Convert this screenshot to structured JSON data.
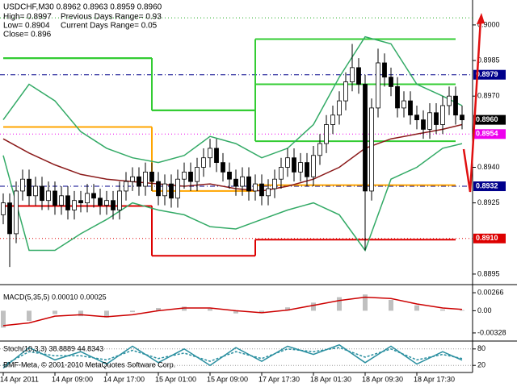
{
  "chart_data": [
    {
      "type": "candlestick",
      "title": "USDCHF,M30  0.8962 0.8963 0.8959 0.8960",
      "info": [
        "High= 0.8997",
        "Previous Days Range= 0.93",
        "Low= 0.8904",
        "Current Days Range= 0.05",
        "Close= 0.896"
      ],
      "footer": "BMF-Meta, © 2001-2010 MetaQuotes Software Corp.",
      "xlim": [
        -0.5,
        71.5
      ],
      "xticks": [
        {
          "value": 0,
          "label": "14 Apr 2011"
        },
        {
          "value": 8,
          "label": "14 Apr 09:00"
        },
        {
          "value": 16,
          "label": "14 Apr 17:00"
        },
        {
          "value": 24,
          "label": "15 Apr 01:00"
        },
        {
          "value": 32,
          "label": "15 Apr 09:00"
        },
        {
          "value": 40,
          "label": "17 Apr 17:30"
        },
        {
          "value": 48,
          "label": "18 Apr 01:30"
        },
        {
          "value": 56,
          "label": "18 Apr 09:30"
        },
        {
          "value": 64,
          "label": "18 Apr 17:30"
        }
      ],
      "ylim": [
        0.88909,
        0.90105
      ],
      "yticks": [
        {
          "value": 0.9,
          "label": "0.9000"
        },
        0.8985,
        {
          "value": 0.897,
          "label": "0.8970"
        },
        {
          "value": 0.894,
          "label": "0.8940"
        },
        0.8925,
        0.8895
      ],
      "up_color": "#ffffff",
      "down_color": "#000000",
      "open": [
        0.892,
        0.8925,
        0.8912,
        0.893,
        0.8935,
        0.8928,
        0.8932,
        0.8926,
        0.893,
        0.8924,
        0.8928,
        0.8922,
        0.8926,
        0.8925,
        0.8929,
        0.8927,
        0.8924,
        0.8926,
        0.8922,
        0.893,
        0.8934,
        0.8936,
        0.8932,
        0.8938,
        0.8934,
        0.8928,
        0.8933,
        0.8927,
        0.8935,
        0.8938,
        0.8934,
        0.894,
        0.8944,
        0.8948,
        0.8942,
        0.8938,
        0.8935,
        0.8932,
        0.8936,
        0.893,
        0.8933,
        0.8928,
        0.8931,
        0.8935,
        0.894,
        0.8944,
        0.8938,
        0.8942,
        0.8936,
        0.8945,
        0.895,
        0.8958,
        0.8962,
        0.8968,
        0.8976,
        0.8982,
        0.8975,
        0.893,
        0.8965,
        0.8984,
        0.8978,
        0.8974,
        0.8965,
        0.8968,
        0.8962,
        0.896,
        0.8956,
        0.8963,
        0.8958,
        0.8966,
        0.897,
        0.8962
      ],
      "high": [
        0.8929,
        0.8929,
        0.8934,
        0.8939,
        0.8939,
        0.8936,
        0.8936,
        0.8934,
        0.8934,
        0.8932,
        0.8932,
        0.893,
        0.893,
        0.8933,
        0.8933,
        0.8931,
        0.893,
        0.893,
        0.8934,
        0.8938,
        0.894,
        0.894,
        0.8942,
        0.8942,
        0.8938,
        0.8937,
        0.8937,
        0.8939,
        0.8942,
        0.8942,
        0.8944,
        0.8948,
        0.8952,
        0.8952,
        0.8946,
        0.8942,
        0.8939,
        0.894,
        0.894,
        0.8937,
        0.8937,
        0.8935,
        0.8939,
        0.8944,
        0.8948,
        0.8948,
        0.8946,
        0.8946,
        0.8949,
        0.8954,
        0.8962,
        0.8966,
        0.8972,
        0.898,
        0.8992,
        0.8986,
        0.8979,
        0.8969,
        0.899,
        0.8988,
        0.8982,
        0.8978,
        0.8972,
        0.8972,
        0.8966,
        0.8964,
        0.8967,
        0.8967,
        0.897,
        0.8974,
        0.8974,
        0.8966
      ],
      "low": [
        0.8916,
        0.8898,
        0.8908,
        0.8926,
        0.8924,
        0.8924,
        0.8922,
        0.8922,
        0.892,
        0.892,
        0.8918,
        0.8918,
        0.8921,
        0.8921,
        0.8923,
        0.892,
        0.892,
        0.8918,
        0.8918,
        0.8926,
        0.893,
        0.8928,
        0.8928,
        0.893,
        0.8924,
        0.8924,
        0.8923,
        0.8923,
        0.8931,
        0.893,
        0.893,
        0.8936,
        0.894,
        0.8938,
        0.8934,
        0.8931,
        0.8928,
        0.8928,
        0.8926,
        0.8926,
        0.8924,
        0.8924,
        0.8927,
        0.8931,
        0.8936,
        0.8934,
        0.8934,
        0.8932,
        0.8932,
        0.8941,
        0.8946,
        0.8954,
        0.8958,
        0.8964,
        0.8972,
        0.8971,
        0.8905,
        0.8926,
        0.8961,
        0.8974,
        0.897,
        0.8961,
        0.8961,
        0.8958,
        0.8956,
        0.8952,
        0.8952,
        0.8954,
        0.8954,
        0.8962,
        0.8958,
        0.8956
      ],
      "close": [
        0.8925,
        0.8912,
        0.893,
        0.8935,
        0.8928,
        0.8932,
        0.8926,
        0.893,
        0.8924,
        0.8928,
        0.8922,
        0.8926,
        0.8925,
        0.8929,
        0.8927,
        0.8924,
        0.8926,
        0.8922,
        0.893,
        0.8934,
        0.8936,
        0.8932,
        0.8938,
        0.8934,
        0.8928,
        0.8933,
        0.8927,
        0.8935,
        0.8938,
        0.8934,
        0.894,
        0.8944,
        0.8948,
        0.8942,
        0.8938,
        0.8935,
        0.8932,
        0.8936,
        0.893,
        0.8933,
        0.8928,
        0.8931,
        0.8935,
        0.894,
        0.8944,
        0.8938,
        0.8942,
        0.8936,
        0.8945,
        0.895,
        0.8958,
        0.8962,
        0.8968,
        0.8976,
        0.8982,
        0.8975,
        0.893,
        0.8965,
        0.8984,
        0.8978,
        0.8974,
        0.8965,
        0.8968,
        0.8962,
        0.896,
        0.8956,
        0.8963,
        0.8958,
        0.8966,
        0.897,
        0.8962,
        0.896
      ],
      "levels": [
        {
          "value": 0.9003,
          "color": "#22aa22",
          "style": "dot"
        },
        {
          "value": 0.8979,
          "color": "#00008b",
          "style": "dashdot",
          "tag": true
        },
        {
          "value": 0.896,
          "label": "0.8960",
          "color": "#000000",
          "style": "none",
          "tag": true
        },
        {
          "value": 0.8954,
          "color": "#ee00ee",
          "style": "dot",
          "tag": true
        },
        {
          "value": 0.8932,
          "color": "#00008b",
          "style": "dashdot",
          "tag": true
        },
        {
          "value": 0.891,
          "label": "0.8910",
          "color": "#dd0000",
          "style": "dot",
          "tag": true
        }
      ],
      "steps": {
        "x": [
          0,
          23,
          39,
          70
        ],
        "series": [
          {
            "color": "#33cc33",
            "values": [
              0.8986,
              0.8964,
              0.8994
            ]
          },
          {
            "color": "#33cc33",
            "values": [
              0.8986,
              0.8964,
              0.8975
            ]
          },
          {
            "color": "#33cc33",
            "values": [
              0.8986,
              0.8964,
              0.8951
            ]
          },
          {
            "color": "#ffa500",
            "values": [
              0.8957,
              0.893,
              0.89325
            ]
          },
          {
            "color": "#dd0000",
            "values": [
              0.89237,
              0.89027,
              0.89095
            ]
          }
        ]
      },
      "indicators": {
        "x": [
          0,
          4,
          8,
          12,
          16,
          20,
          24,
          28,
          32,
          36,
          40,
          44,
          48,
          52,
          56,
          60,
          64,
          68,
          71
        ],
        "series": [
          {
            "color": "#33aa66",
            "values": [
              0.896,
              0.8975,
              0.8968,
              0.8955,
              0.8948,
              0.8944,
              0.8942,
              0.8945,
              0.8953,
              0.895,
              0.8944,
              0.8948,
              0.8958,
              0.8978,
              0.8995,
              0.8992,
              0.8975,
              0.897,
              0.8966
            ]
          },
          {
            "color": "#33aa66",
            "values": [
              0.8945,
              0.8905,
              0.8905,
              0.8912,
              0.8918,
              0.8925,
              0.8922,
              0.892,
              0.8915,
              0.8914,
              0.8918,
              0.8922,
              0.8925,
              0.892,
              0.8905,
              0.8935,
              0.894,
              0.8948,
              0.895
            ]
          },
          {
            "color": "#8b1a1a",
            "values": [
              0.8952,
              0.8946,
              0.8941,
              0.8937,
              0.8935,
              0.8934,
              0.8933,
              0.8932,
              0.8933,
              0.8931,
              0.893,
              0.8932,
              0.8935,
              0.894,
              0.8948,
              0.8952,
              0.8954,
              0.8956,
              0.8958
            ]
          }
        ]
      }
    },
    {
      "type": "macd",
      "label": "MACD(5,35,5) 0.00010 0.00025",
      "ylim": [
        -0.00436,
        0.00362
      ],
      "yticks": [
        0.00266,
        {
          "value": 0,
          "label": "0.00"
        },
        -0.00328
      ],
      "x": [
        0,
        4,
        8,
        12,
        16,
        20,
        24,
        28,
        32,
        36,
        40,
        44,
        48,
        52,
        56,
        60,
        64,
        68,
        71
      ],
      "histogram": {
        "color": "#c0c0c0",
        "values": [
          -0.0025,
          -0.0015,
          -0.0005,
          -0.0008,
          -0.001,
          -0.0002,
          0.0004,
          0.0006,
          0.0003,
          -0.0004,
          -0.0002,
          0.0005,
          0.0012,
          0.002,
          0.0024,
          0.0016,
          0.0008,
          0.0002,
          0.0001
        ]
      },
      "signal": {
        "color": "#cc0000",
        "values": [
          -0.0022,
          -0.0018,
          -0.0008,
          -0.0006,
          -0.0009,
          -0.0006,
          0.0,
          0.0004,
          0.0004,
          0.0,
          -0.0003,
          0.0001,
          0.0008,
          0.0015,
          0.002,
          0.0018,
          0.001,
          0.0004,
          0.0002
        ]
      }
    },
    {
      "type": "stoch",
      "label": "Stoch(10,3,3) 38.8889 44.8343",
      "ylim": [
        0,
        100
      ],
      "yticks": [
        80,
        20
      ],
      "x": [
        0,
        4,
        8,
        12,
        16,
        20,
        24,
        28,
        32,
        36,
        40,
        44,
        48,
        52,
        56,
        60,
        64,
        68,
        71
      ],
      "main": {
        "color": "#2a8fa0",
        "values": [
          10,
          85,
          40,
          70,
          25,
          90,
          30,
          80,
          20,
          85,
          35,
          90,
          60,
          95,
          30,
          90,
          25,
          70,
          39
        ]
      },
      "signal": {
        "color": "#2a8fa0",
        "dashed": true,
        "values": [
          20,
          70,
          55,
          55,
          40,
          75,
          45,
          65,
          35,
          70,
          45,
          80,
          70,
          85,
          50,
          80,
          40,
          60,
          45
        ]
      }
    }
  ]
}
